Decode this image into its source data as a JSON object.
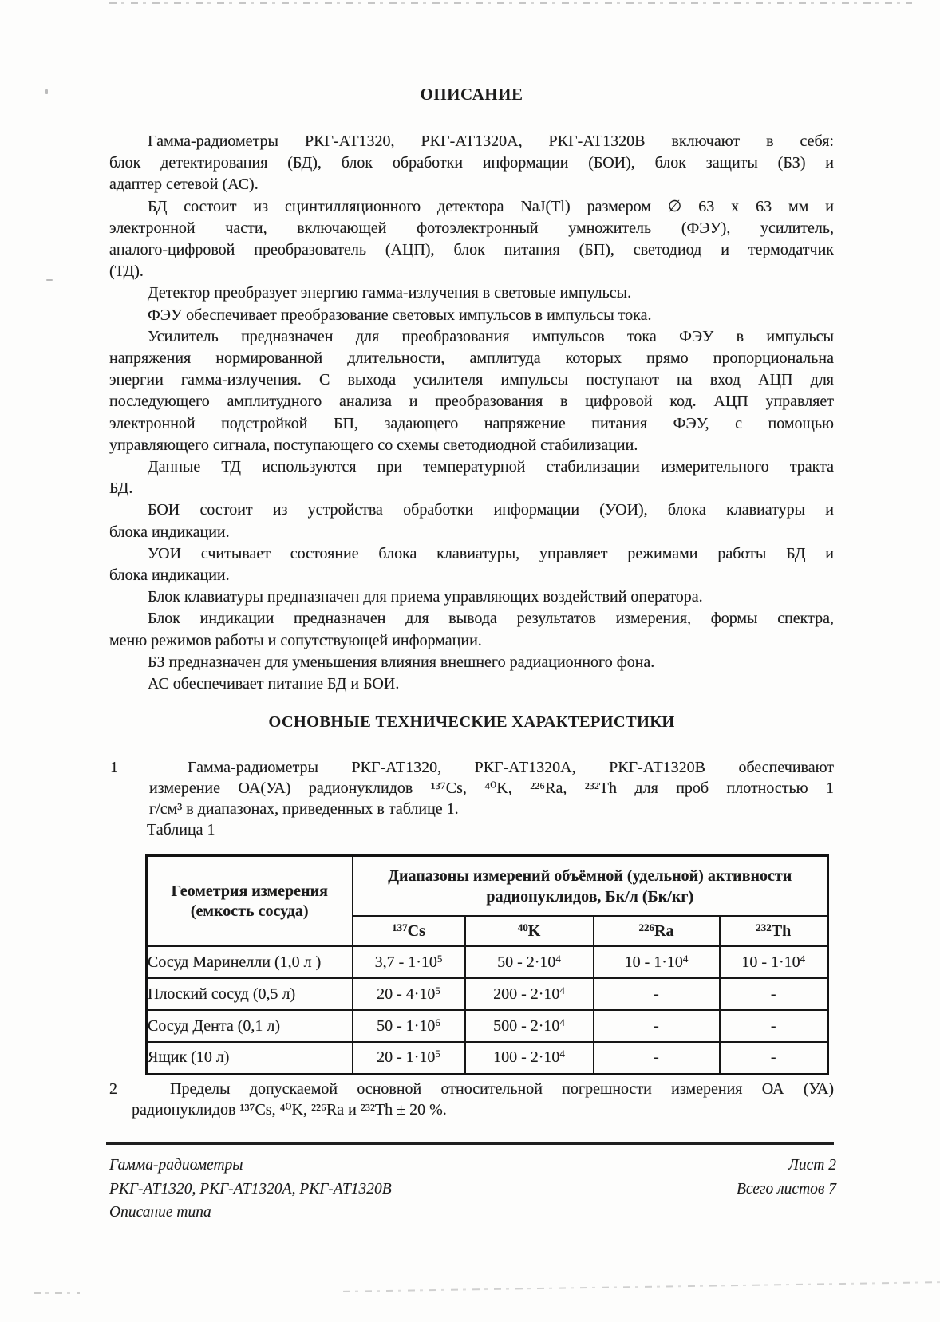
{
  "page": {
    "title": "ОПИСАНИЕ",
    "section2_heading": "ОСНОВНЫЕ ТЕХНИЧЕСКИЕ ХАРАКТЕРИСТИКИ"
  },
  "description": {
    "paragraphs": [
      [
        "Гамма-радиометры РКГ-АТ1320, РКГ-АТ1320А, РКГ-АТ1320В включают в себя:",
        "блок детектирования (БД), блок обработки информации (БОИ), блок защиты (БЗ) и",
        "адаптер сетевой (АС)."
      ],
      [
        "БД состоит из сцинтилляционного детектора NaJ(Tl) размером ∅ 63 х 63 мм и",
        "электронной части, включающей фотоэлектронный умножитель (ФЭУ), усилитель,",
        "аналого-цифровой преобразователь (АЦП), блок питания (БП), светодиод и термодатчик",
        "(ТД)."
      ],
      [
        "Детектор преобразует энергию гамма-излучения в световые импульсы."
      ],
      [
        "ФЭУ обеспечивает преобразование световых импульсов в импульсы тока."
      ],
      [
        "Усилитель предназначен для преобразования импульсов тока ФЭУ в импульсы",
        "напряжения нормированной длительности, амплитуда которых прямо пропорциональна",
        "энергии гамма-излучения. С выхода усилителя импульсы поступают на вход АЦП для",
        "последующего амплитудного анализа и преобразования в цифровой код. АЦП управляет",
        "электронной подстройкой БП, задающего напряжение питания ФЭУ, с помощью",
        "управляющего сигнала, поступающего со схемы светодиодной стабилизации."
      ],
      [
        "Данные ТД используются при температурной стабилизации измерительного тракта",
        "БД."
      ],
      [
        "БОИ состоит из устройства обработки информации (УОИ), блока клавиатуры и",
        "блока индикации."
      ],
      [
        "УОИ считывает состояние блока клавиатуры, управляет режимами работы БД и",
        "блока индикации."
      ],
      [
        "Блок клавиатуры предназначен для приема управляющих воздействий оператора."
      ],
      [
        "Блок индикации предназначен для вывода результатов измерения, формы спектра,",
        "меню режимов работы и сопутствующей информации."
      ],
      [
        "БЗ предназначен для уменьшения влияния внешнего радиационного фона."
      ],
      [
        "АС обеспечивает питание БД и БОИ."
      ]
    ]
  },
  "specs": {
    "items": [
      {
        "num": "1",
        "lines": [
          "Гамма-радиометры РКГ-АТ1320, РКГ-АТ1320А, РКГ-АТ1320В обеспечивают",
          "измерение ОА(УА) радионуклидов ¹³⁷Cs, ⁴⁰K, ²²⁶Ra, ²³²Th для проб плотностью 1",
          "г/см³ в диапазонах, приведенных в таблице 1."
        ]
      },
      {
        "num": "2",
        "lines": [
          "Пределы допускаемой основной относительной погрешности измерения ОА (УА)",
          "радионуклидов ¹³⁷Cs, ⁴⁰K, ²²⁶Ra и ²³²Th ± 20 %."
        ]
      }
    ]
  },
  "table": {
    "caption": "Таблица 1",
    "col1_header_line1": "Геометрия измерения",
    "col1_header_line2": "(емкость сосуда)",
    "group_header": "Диапазоны измерений объёмной (удельной) активности радионуклидов, Бк/л (Бк/кг)",
    "isotopes": [
      {
        "sup": "137",
        "sym": "Cs"
      },
      {
        "sup": "40",
        "sym": "K"
      },
      {
        "sup": "226",
        "sym": "Ra"
      },
      {
        "sup": "232",
        "sym": "Th"
      }
    ],
    "rows": [
      [
        {
          "t": "Сосуд Маринелли (1,0 л )"
        },
        {
          "t": "3,7 - 1·10",
          "sup": "5"
        },
        {
          "t": "50 - 2·10",
          "sup": "4"
        },
        {
          "t": "10 - 1·10",
          "sup": "4"
        },
        {
          "t": "10 - 1·10",
          "sup": "4"
        }
      ],
      [
        {
          "t": "Плоский сосуд (0,5 л)"
        },
        {
          "t": "20 - 4·10",
          "sup": "5"
        },
        {
          "t": "200 - 2·10",
          "sup": "4"
        },
        {
          "t": "-"
        },
        {
          "t": "-"
        }
      ],
      [
        {
          "t": "Сосуд Дента (0,1 л)"
        },
        {
          "t": "50 - 1·10",
          "sup": "6"
        },
        {
          "t": "500 - 2·10",
          "sup": "4"
        },
        {
          "t": "-"
        },
        {
          "t": "-"
        }
      ],
      [
        {
          "t": "Ящик (10 л)"
        },
        {
          "t": "20 - 1·10",
          "sup": "5"
        },
        {
          "t": "100 - 2·10",
          "sup": "4"
        },
        {
          "t": "-"
        },
        {
          "t": "-"
        }
      ]
    ]
  },
  "footer": {
    "left_lines": [
      "Гамма-радиометры",
      "РКГ-АТ1320, РКГ-АТ1320А, РКГ-АТ1320В",
      "Описание типа"
    ],
    "right_lines": [
      "Лист 2",
      "Всего листов 7"
    ]
  }
}
